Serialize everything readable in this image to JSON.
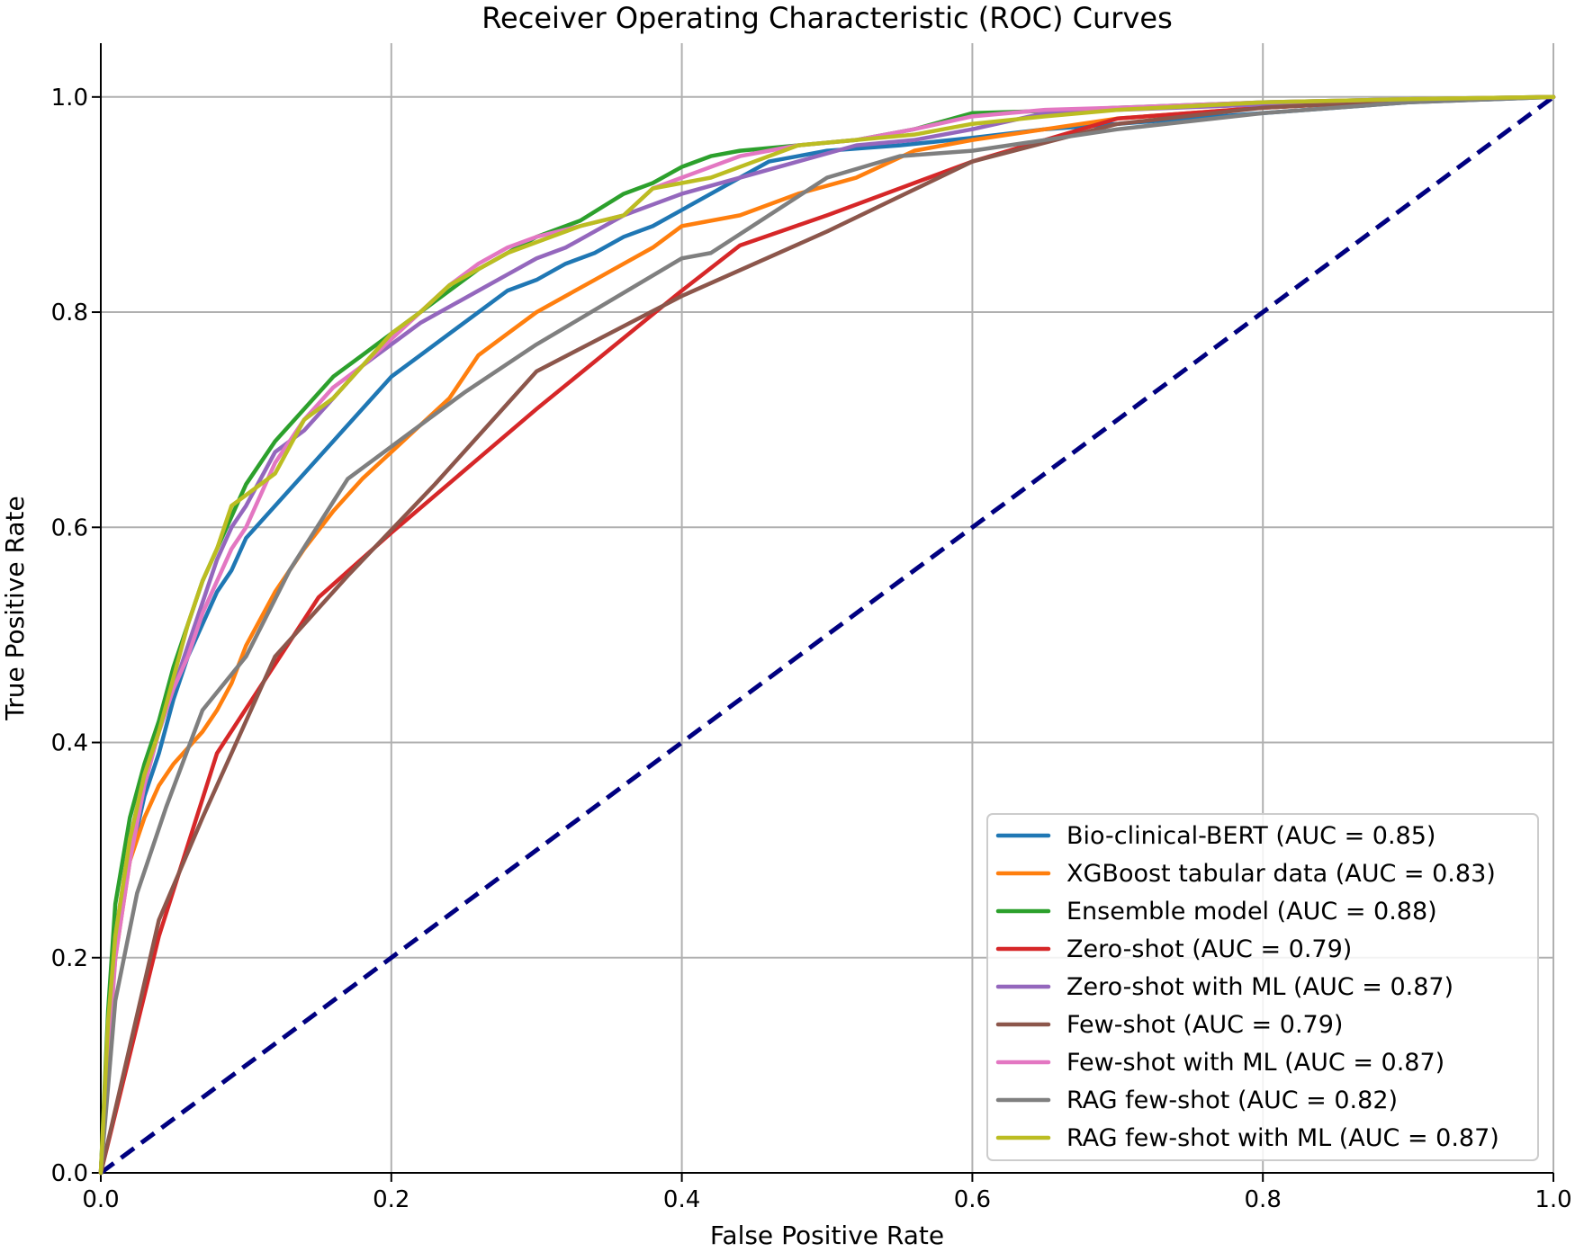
{
  "chart_data": {
    "type": "line",
    "title": "Receiver Operating Characteristic (ROC) Curves",
    "xlabel": "False Positive Rate",
    "ylabel": "True Positive Rate",
    "xlim": [
      0,
      1
    ],
    "ylim": [
      0,
      1.05
    ],
    "grid": true,
    "legend_position": "bottom-right",
    "x_ticks": [
      "0.0",
      "0.2",
      "0.4",
      "0.6",
      "0.8",
      "1.0"
    ],
    "y_ticks": [
      "0.0",
      "0.2",
      "0.4",
      "0.6",
      "0.8",
      "1.0"
    ],
    "reference_line": {
      "style": "dashed",
      "color": "#000080",
      "points": [
        [
          0,
          0
        ],
        [
          1,
          1
        ]
      ]
    },
    "series": [
      {
        "name": "Bio-clinical-BERT (AUC = 0.85)",
        "color": "#1f77b4",
        "points": [
          [
            0,
            0
          ],
          [
            0.005,
            0.12
          ],
          [
            0.01,
            0.22
          ],
          [
            0.02,
            0.29
          ],
          [
            0.03,
            0.35
          ],
          [
            0.04,
            0.39
          ],
          [
            0.05,
            0.44
          ],
          [
            0.06,
            0.48
          ],
          [
            0.07,
            0.51
          ],
          [
            0.08,
            0.54
          ],
          [
            0.09,
            0.56
          ],
          [
            0.1,
            0.59
          ],
          [
            0.12,
            0.62
          ],
          [
            0.14,
            0.65
          ],
          [
            0.16,
            0.68
          ],
          [
            0.18,
            0.71
          ],
          [
            0.2,
            0.74
          ],
          [
            0.22,
            0.76
          ],
          [
            0.24,
            0.78
          ],
          [
            0.26,
            0.8
          ],
          [
            0.28,
            0.82
          ],
          [
            0.3,
            0.83
          ],
          [
            0.32,
            0.845
          ],
          [
            0.34,
            0.855
          ],
          [
            0.36,
            0.87
          ],
          [
            0.38,
            0.88
          ],
          [
            0.4,
            0.895
          ],
          [
            0.42,
            0.91
          ],
          [
            0.44,
            0.925
          ],
          [
            0.46,
            0.94
          ],
          [
            0.5,
            0.95
          ],
          [
            0.55,
            0.955
          ],
          [
            0.6,
            0.962
          ],
          [
            0.65,
            0.97
          ],
          [
            0.7,
            0.975
          ],
          [
            0.8,
            0.985
          ],
          [
            0.9,
            0.995
          ],
          [
            1,
            1
          ]
        ]
      },
      {
        "name": "XGBoost tabular data (AUC = 0.83)",
        "color": "#ff7f0e",
        "points": [
          [
            0,
            0
          ],
          [
            0.005,
            0.12
          ],
          [
            0.01,
            0.2
          ],
          [
            0.02,
            0.29
          ],
          [
            0.03,
            0.33
          ],
          [
            0.04,
            0.36
          ],
          [
            0.05,
            0.38
          ],
          [
            0.06,
            0.395
          ],
          [
            0.07,
            0.41
          ],
          [
            0.08,
            0.43
          ],
          [
            0.09,
            0.455
          ],
          [
            0.1,
            0.49
          ],
          [
            0.12,
            0.54
          ],
          [
            0.14,
            0.58
          ],
          [
            0.16,
            0.615
          ],
          [
            0.18,
            0.645
          ],
          [
            0.2,
            0.67
          ],
          [
            0.22,
            0.695
          ],
          [
            0.24,
            0.72
          ],
          [
            0.26,
            0.76
          ],
          [
            0.28,
            0.78
          ],
          [
            0.3,
            0.8
          ],
          [
            0.32,
            0.815
          ],
          [
            0.34,
            0.83
          ],
          [
            0.36,
            0.845
          ],
          [
            0.38,
            0.86
          ],
          [
            0.4,
            0.88
          ],
          [
            0.44,
            0.89
          ],
          [
            0.48,
            0.91
          ],
          [
            0.52,
            0.925
          ],
          [
            0.56,
            0.95
          ],
          [
            0.6,
            0.96
          ],
          [
            0.65,
            0.97
          ],
          [
            0.7,
            0.98
          ],
          [
            0.8,
            0.99
          ],
          [
            0.9,
            0.997
          ],
          [
            1,
            1
          ]
        ]
      },
      {
        "name": "Ensemble model (AUC = 0.88)",
        "color": "#2ca02c",
        "points": [
          [
            0,
            0
          ],
          [
            0.005,
            0.15
          ],
          [
            0.01,
            0.25
          ],
          [
            0.02,
            0.33
          ],
          [
            0.03,
            0.38
          ],
          [
            0.04,
            0.42
          ],
          [
            0.05,
            0.47
          ],
          [
            0.06,
            0.51
          ],
          [
            0.07,
            0.55
          ],
          [
            0.08,
            0.58
          ],
          [
            0.09,
            0.61
          ],
          [
            0.1,
            0.64
          ],
          [
            0.12,
            0.68
          ],
          [
            0.14,
            0.71
          ],
          [
            0.16,
            0.74
          ],
          [
            0.18,
            0.76
          ],
          [
            0.2,
            0.78
          ],
          [
            0.22,
            0.8
          ],
          [
            0.24,
            0.82
          ],
          [
            0.26,
            0.84
          ],
          [
            0.28,
            0.855
          ],
          [
            0.3,
            0.87
          ],
          [
            0.33,
            0.885
          ],
          [
            0.36,
            0.91
          ],
          [
            0.38,
            0.92
          ],
          [
            0.4,
            0.935
          ],
          [
            0.42,
            0.945
          ],
          [
            0.44,
            0.95
          ],
          [
            0.48,
            0.955
          ],
          [
            0.52,
            0.96
          ],
          [
            0.56,
            0.97
          ],
          [
            0.6,
            0.985
          ],
          [
            0.65,
            0.987
          ],
          [
            0.7,
            0.99
          ],
          [
            0.8,
            0.995
          ],
          [
            0.9,
            0.998
          ],
          [
            1,
            1
          ]
        ]
      },
      {
        "name": "Zero-shot (AUC = 0.79)",
        "color": "#d62728",
        "points": [
          [
            0,
            0
          ],
          [
            0.04,
            0.22
          ],
          [
            0.08,
            0.39
          ],
          [
            0.15,
            0.535
          ],
          [
            0.2,
            0.595
          ],
          [
            0.3,
            0.71
          ],
          [
            0.4,
            0.82
          ],
          [
            0.44,
            0.862
          ],
          [
            0.5,
            0.89
          ],
          [
            0.55,
            0.915
          ],
          [
            0.6,
            0.94
          ],
          [
            0.7,
            0.98
          ],
          [
            0.8,
            0.99
          ],
          [
            0.9,
            0.997
          ],
          [
            1,
            1
          ]
        ]
      },
      {
        "name": "Zero-shot with ML (AUC = 0.87)",
        "color": "#9467bd",
        "points": [
          [
            0,
            0
          ],
          [
            0.005,
            0.12
          ],
          [
            0.01,
            0.22
          ],
          [
            0.02,
            0.31
          ],
          [
            0.03,
            0.37
          ],
          [
            0.04,
            0.41
          ],
          [
            0.05,
            0.45
          ],
          [
            0.06,
            0.49
          ],
          [
            0.07,
            0.53
          ],
          [
            0.08,
            0.57
          ],
          [
            0.09,
            0.6
          ],
          [
            0.1,
            0.62
          ],
          [
            0.12,
            0.67
          ],
          [
            0.14,
            0.69
          ],
          [
            0.16,
            0.72
          ],
          [
            0.18,
            0.75
          ],
          [
            0.2,
            0.77
          ],
          [
            0.22,
            0.79
          ],
          [
            0.24,
            0.805
          ],
          [
            0.26,
            0.82
          ],
          [
            0.28,
            0.835
          ],
          [
            0.3,
            0.85
          ],
          [
            0.32,
            0.86
          ],
          [
            0.34,
            0.875
          ],
          [
            0.36,
            0.89
          ],
          [
            0.38,
            0.9
          ],
          [
            0.4,
            0.91
          ],
          [
            0.44,
            0.925
          ],
          [
            0.48,
            0.94
          ],
          [
            0.52,
            0.955
          ],
          [
            0.56,
            0.96
          ],
          [
            0.6,
            0.97
          ],
          [
            0.65,
            0.985
          ],
          [
            0.7,
            0.988
          ],
          [
            0.8,
            0.993
          ],
          [
            0.9,
            0.997
          ],
          [
            1,
            1
          ]
        ]
      },
      {
        "name": "Few-shot (AUC = 0.79)",
        "color": "#8c564b",
        "points": [
          [
            0,
            0
          ],
          [
            0.04,
            0.235
          ],
          [
            0.07,
            0.33
          ],
          [
            0.12,
            0.48
          ],
          [
            0.17,
            0.555
          ],
          [
            0.23,
            0.64
          ],
          [
            0.3,
            0.745
          ],
          [
            0.4,
            0.815
          ],
          [
            0.5,
            0.875
          ],
          [
            0.6,
            0.94
          ],
          [
            0.7,
            0.975
          ],
          [
            0.8,
            0.99
          ],
          [
            0.9,
            0.997
          ],
          [
            1,
            1
          ]
        ]
      },
      {
        "name": "Few-shot with ML (AUC = 0.87)",
        "color": "#e377c2",
        "points": [
          [
            0,
            0
          ],
          [
            0.005,
            0.1
          ],
          [
            0.01,
            0.2
          ],
          [
            0.02,
            0.29
          ],
          [
            0.03,
            0.36
          ],
          [
            0.04,
            0.41
          ],
          [
            0.05,
            0.45
          ],
          [
            0.06,
            0.48
          ],
          [
            0.07,
            0.52
          ],
          [
            0.08,
            0.55
          ],
          [
            0.09,
            0.58
          ],
          [
            0.1,
            0.6
          ],
          [
            0.12,
            0.66
          ],
          [
            0.14,
            0.7
          ],
          [
            0.16,
            0.73
          ],
          [
            0.18,
            0.75
          ],
          [
            0.2,
            0.775
          ],
          [
            0.22,
            0.8
          ],
          [
            0.24,
            0.825
          ],
          [
            0.26,
            0.845
          ],
          [
            0.28,
            0.86
          ],
          [
            0.3,
            0.87
          ],
          [
            0.33,
            0.88
          ],
          [
            0.36,
            0.89
          ],
          [
            0.38,
            0.915
          ],
          [
            0.4,
            0.925
          ],
          [
            0.42,
            0.935
          ],
          [
            0.44,
            0.945
          ],
          [
            0.48,
            0.955
          ],
          [
            0.52,
            0.96
          ],
          [
            0.56,
            0.97
          ],
          [
            0.6,
            0.982
          ],
          [
            0.65,
            0.988
          ],
          [
            0.7,
            0.99
          ],
          [
            0.8,
            0.995
          ],
          [
            0.9,
            0.998
          ],
          [
            1,
            1
          ]
        ]
      },
      {
        "name": "RAG few-shot (AUC = 0.82)",
        "color": "#7f7f7f",
        "points": [
          [
            0,
            0
          ],
          [
            0.01,
            0.16
          ],
          [
            0.025,
            0.26
          ],
          [
            0.045,
            0.34
          ],
          [
            0.07,
            0.43
          ],
          [
            0.1,
            0.48
          ],
          [
            0.13,
            0.56
          ],
          [
            0.17,
            0.645
          ],
          [
            0.2,
            0.675
          ],
          [
            0.25,
            0.725
          ],
          [
            0.3,
            0.77
          ],
          [
            0.35,
            0.81
          ],
          [
            0.4,
            0.85
          ],
          [
            0.42,
            0.855
          ],
          [
            0.46,
            0.89
          ],
          [
            0.5,
            0.925
          ],
          [
            0.55,
            0.945
          ],
          [
            0.6,
            0.95
          ],
          [
            0.7,
            0.97
          ],
          [
            0.8,
            0.985
          ],
          [
            0.9,
            0.995
          ],
          [
            1,
            1
          ]
        ]
      },
      {
        "name": "RAG few-shot with ML (AUC = 0.87)",
        "color": "#bcbd22",
        "points": [
          [
            0,
            0
          ],
          [
            0.005,
            0.14
          ],
          [
            0.01,
            0.22
          ],
          [
            0.02,
            0.31
          ],
          [
            0.03,
            0.37
          ],
          [
            0.04,
            0.41
          ],
          [
            0.05,
            0.46
          ],
          [
            0.06,
            0.51
          ],
          [
            0.07,
            0.55
          ],
          [
            0.08,
            0.58
          ],
          [
            0.09,
            0.62
          ],
          [
            0.1,
            0.63
          ],
          [
            0.12,
            0.65
          ],
          [
            0.14,
            0.7
          ],
          [
            0.16,
            0.72
          ],
          [
            0.18,
            0.75
          ],
          [
            0.2,
            0.78
          ],
          [
            0.22,
            0.8
          ],
          [
            0.24,
            0.825
          ],
          [
            0.26,
            0.84
          ],
          [
            0.28,
            0.855
          ],
          [
            0.3,
            0.865
          ],
          [
            0.33,
            0.88
          ],
          [
            0.36,
            0.89
          ],
          [
            0.38,
            0.915
          ],
          [
            0.4,
            0.92
          ],
          [
            0.42,
            0.925
          ],
          [
            0.44,
            0.935
          ],
          [
            0.48,
            0.955
          ],
          [
            0.52,
            0.96
          ],
          [
            0.56,
            0.965
          ],
          [
            0.6,
            0.975
          ],
          [
            0.65,
            0.982
          ],
          [
            0.7,
            0.988
          ],
          [
            0.8,
            0.995
          ],
          [
            0.9,
            0.998
          ],
          [
            1,
            1
          ]
        ]
      }
    ]
  }
}
